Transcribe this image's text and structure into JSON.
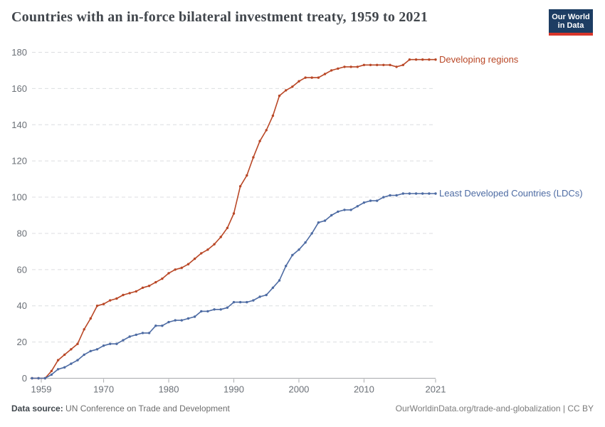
{
  "header": {
    "logo": {
      "line1": "Our World",
      "line2": "in Data",
      "bg_color": "#1d3d63",
      "accent_color": "#d8352a"
    }
  },
  "chart_data": {
    "type": "line",
    "title": "Countries with an in-force bilateral investment treaty, 1959 to 2021",
    "xlabel": "",
    "ylabel": "",
    "xlim": [
      1959,
      2021
    ],
    "ylim": [
      0,
      180
    ],
    "grid": "horizontal-dashed",
    "legend_position": "line-end-labels-right",
    "x_ticks": [
      1959,
      1970,
      1980,
      1990,
      2000,
      2010,
      2021
    ],
    "y_ticks": [
      0,
      20,
      40,
      60,
      80,
      100,
      120,
      140,
      160,
      180
    ],
    "x": [
      1959,
      1960,
      1961,
      1962,
      1963,
      1964,
      1965,
      1966,
      1967,
      1968,
      1969,
      1970,
      1971,
      1972,
      1973,
      1974,
      1975,
      1976,
      1977,
      1978,
      1979,
      1980,
      1981,
      1982,
      1983,
      1984,
      1985,
      1986,
      1987,
      1988,
      1989,
      1990,
      1991,
      1992,
      1993,
      1994,
      1995,
      1996,
      1997,
      1998,
      1999,
      2000,
      2001,
      2002,
      2003,
      2004,
      2005,
      2006,
      2007,
      2008,
      2009,
      2010,
      2011,
      2012,
      2013,
      2014,
      2015,
      2016,
      2017,
      2018,
      2019,
      2020,
      2021
    ],
    "series": [
      {
        "name": "Developing regions",
        "color": "#b94726",
        "values": [
          0,
          0,
          0,
          4,
          10,
          13,
          16,
          19,
          27,
          33,
          40,
          41,
          43,
          44,
          46,
          47,
          48,
          50,
          51,
          53,
          55,
          58,
          60,
          61,
          63,
          66,
          69,
          71,
          74,
          78,
          83,
          91,
          106,
          112,
          122,
          131,
          137,
          145,
          156,
          159,
          161,
          164,
          166,
          166,
          166,
          168,
          170,
          171,
          172,
          172,
          172,
          173,
          173,
          173,
          173,
          173,
          172,
          173,
          176,
          176,
          176,
          176,
          176
        ]
      },
      {
        "name": "Least Developed Countries (LDCs)",
        "color": "#4d6ba3",
        "values": [
          0,
          0,
          0,
          2,
          5,
          6,
          8,
          10,
          13,
          15,
          16,
          18,
          19,
          19,
          21,
          23,
          24,
          25,
          25,
          29,
          29,
          31,
          32,
          32,
          33,
          34,
          37,
          37,
          38,
          38,
          39,
          42,
          42,
          42,
          43,
          45,
          46,
          50,
          54,
          62,
          68,
          71,
          75,
          80,
          86,
          87,
          90,
          92,
          93,
          93,
          95,
          97,
          98,
          98,
          100,
          101,
          101,
          102,
          102,
          102,
          102,
          102,
          102
        ]
      }
    ]
  },
  "axis_style": {
    "grid_color": "#dcdee0",
    "axis_color": "#a7a9ac",
    "tick_label_color": "#6b7077"
  },
  "footer": {
    "source_label": "Data source:",
    "source_text": " UN Conference on Trade and Development",
    "credit": "OurWorldinData.org/trade-and-globalization | CC BY"
  }
}
